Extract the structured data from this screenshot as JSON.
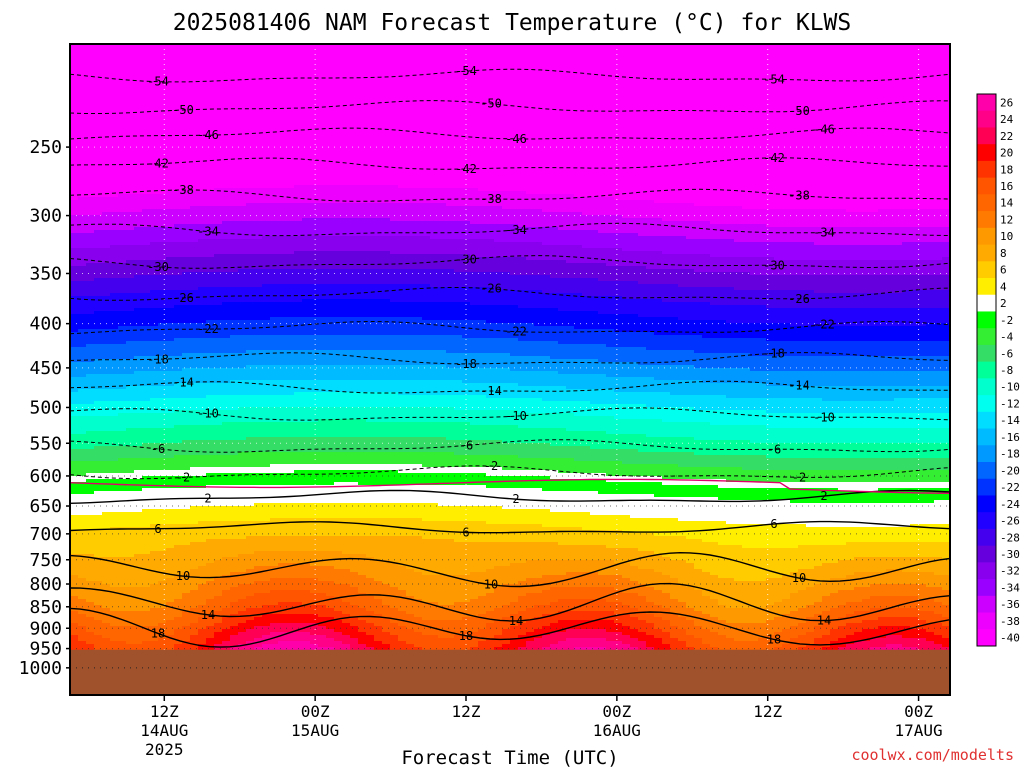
{
  "chart_data": {
    "type": "heatmap",
    "title": "2025081406 NAM Forecast Temperature (°C) for KLWS",
    "xlabel": "Forecast Time (UTC)",
    "ylabel": "",
    "credit": "coolwx.com/modelts",
    "x_range_hours": [
      -1.5,
      68.5
    ],
    "x_ticks": [
      {
        "hour": 6,
        "label": "12Z",
        "date": "14AUG",
        "year": "2025"
      },
      {
        "hour": 18,
        "label": "00Z",
        "date": "15AUG",
        "year": ""
      },
      {
        "hour": 30,
        "label": "12Z",
        "date": "",
        "year": ""
      },
      {
        "hour": 42,
        "label": "00Z",
        "date": "16AUG",
        "year": ""
      },
      {
        "hour": 54,
        "label": "12Z",
        "date": "",
        "year": ""
      },
      {
        "hour": 66,
        "label": "00Z",
        "date": "17AUG",
        "year": ""
      },
      {
        "hour": 78,
        "label": "12Z",
        "date": "",
        "year": ""
      }
    ],
    "y_scale": "log",
    "y_range_hpa": [
      1075,
      190
    ],
    "y_ticks": [
      250,
      300,
      350,
      400,
      450,
      500,
      550,
      600,
      650,
      700,
      750,
      800,
      850,
      900,
      950,
      1000
    ],
    "surface_pressure_hpa": 953,
    "surface_color": "#A0522D",
    "colorbar": {
      "labels": [
        "26",
        "24",
        "22",
        "20",
        "18",
        "16",
        "14",
        "12",
        "10",
        "8",
        "6",
        "4",
        "2",
        "-2",
        "-4",
        "-6",
        "-8",
        "-10",
        "-12",
        "-14",
        "-16",
        "-18",
        "-20",
        "-22",
        "-24",
        "-26",
        "-28",
        "-30",
        "-32",
        "-34",
        "-36",
        "-38",
        "-40"
      ],
      "colors": [
        "#ff00aa",
        "#ff0088",
        "#ff0055",
        "#ff0000",
        "#ff3300",
        "#ff5500",
        "#ff6600",
        "#ff7a00",
        "#ff9900",
        "#ffaa00",
        "#ffcc00",
        "#ffee00",
        "#ffffff",
        "#00ff00",
        "#33ee33",
        "#33dd66",
        "#00ff99",
        "#00ffcc",
        "#00ffee",
        "#00ddff",
        "#00bbff",
        "#0099ff",
        "#0066ff",
        "#0033ff",
        "#0000ff",
        "#2200ff",
        "#4400ee",
        "#6600dd",
        "#8800ee",
        "#9900ff",
        "#cc00ff",
        "#ee00ff",
        "#ff00ff"
      ]
    },
    "isotherm_labels_C": [
      -54,
      -50,
      -46,
      -42,
      -38,
      -34,
      -30,
      -26,
      -22,
      -18,
      -14,
      -10,
      -6,
      -2,
      2,
      6,
      10,
      14,
      18
    ],
    "isotherm_pressure_hpa": [
      {
        "t": -54,
        "p": 207
      },
      {
        "t": -50,
        "p": 225
      },
      {
        "t": -46,
        "p": 242
      },
      {
        "t": -42,
        "p": 262
      },
      {
        "t": -38,
        "p": 285
      },
      {
        "t": -34,
        "p": 312
      },
      {
        "t": -30,
        "p": 340
      },
      {
        "t": -26,
        "p": 370
      },
      {
        "t": -22,
        "p": 405
      },
      {
        "t": -18,
        "p": 440
      },
      {
        "t": -14,
        "p": 475
      },
      {
        "t": -10,
        "p": 510
      },
      {
        "t": -6,
        "p": 555
      },
      {
        "t": -2,
        "p": 595
      },
      {
        "t": 2,
        "p": 635
      },
      {
        "t": 6,
        "p": 690
      },
      {
        "t": 10,
        "p": 770
      },
      {
        "t": 14,
        "p": 845
      },
      {
        "t": 18,
        "p": 900
      }
    ]
  }
}
